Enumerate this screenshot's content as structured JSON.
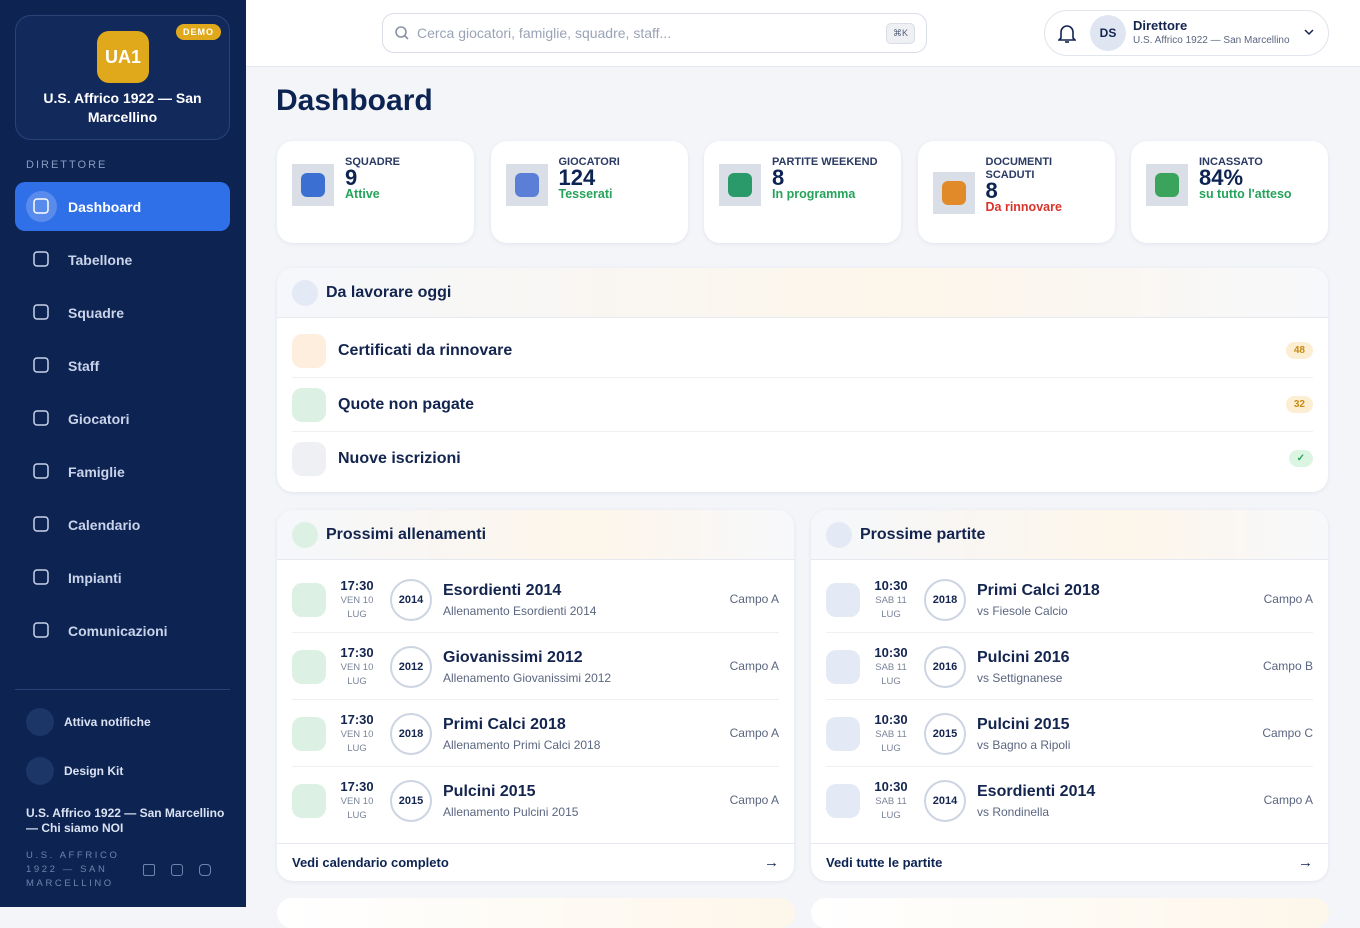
{
  "sidebar": {
    "logo": "UA1",
    "badge": "DEMO",
    "club": "U.S. Affrico 1922 — San Marcellino",
    "section": "DIRETTORE",
    "nav": [
      "Dashboard",
      "Tabellone",
      "Squadre",
      "Staff",
      "Giocatori",
      "Famiglie",
      "Calendario",
      "Impianti",
      "Comunicazioni"
    ],
    "actions": [
      "Attiva notifiche",
      "Design Kit"
    ],
    "footer_club": "U.S. Affrico 1922 — San Marcellino — Chi siamo NOI",
    "footer_small": "U.S. AFFRICO 1922 — SAN MARCELLINO"
  },
  "header": {
    "search": "Cerca giocatori, famiglie, squadre, staff...",
    "shortcut": "⌘K",
    "initials": "DS",
    "role": "Direttore",
    "club": "U.S. Affrico 1922 — San Marcellino"
  },
  "title": "Dashboard",
  "stats": [
    {
      "label": "SQUADRE",
      "value": "9",
      "sub": "Attive"
    },
    {
      "label": "GIOCATORI",
      "value": "124",
      "sub": "Tesserati"
    },
    {
      "label": "PARTITE WEEKEND",
      "value": "8",
      "sub": "In programma"
    },
    {
      "label": "DOCUMENTI SCADUTI",
      "value": "8",
      "sub": "Da rinnovare"
    },
    {
      "label": "INCASSATO",
      "value": "84%",
      "sub": "su tutto l'atteso"
    }
  ],
  "todo": {
    "title": "Da lavorare oggi",
    "items": [
      {
        "label": "Certificati da rinnovare",
        "badge": "48"
      },
      {
        "label": "Quote non pagate",
        "badge": "32"
      },
      {
        "label": "Nuove iscrizioni",
        "badge": "✓"
      }
    ]
  },
  "trainings": {
    "title": "Prossimi allenamenti",
    "items": [
      {
        "time": "17:30",
        "day": "VEN 10 LUG",
        "year": "2014",
        "name": "Esordienti 2014",
        "sub": "Allenamento Esordienti 2014",
        "field": "Campo A"
      },
      {
        "time": "17:30",
        "day": "VEN 10 LUG",
        "year": "2012",
        "name": "Giovanissimi 2012",
        "sub": "Allenamento Giovanissimi 2012",
        "field": "Campo A"
      },
      {
        "time": "17:30",
        "day": "VEN 10 LUG",
        "year": "2018",
        "name": "Primi Calci 2018",
        "sub": "Allenamento Primi Calci 2018",
        "field": "Campo A"
      },
      {
        "time": "17:30",
        "day": "VEN 10 LUG",
        "year": "2015",
        "name": "Pulcini 2015",
        "sub": "Allenamento Pulcini 2015",
        "field": "Campo A"
      }
    ],
    "link": "Vedi calendario completo"
  },
  "matches": {
    "title": "Prossime partite",
    "items": [
      {
        "time": "10:30",
        "day": "SAB 11 LUG",
        "year": "2018",
        "name": "Primi Calci 2018",
        "sub": "vs Fiesole Calcio",
        "field": "Campo A"
      },
      {
        "time": "10:30",
        "day": "SAB 11 LUG",
        "year": "2016",
        "name": "Pulcini 2016",
        "sub": "vs Settignanese",
        "field": "Campo B"
      },
      {
        "time": "10:30",
        "day": "SAB 11 LUG",
        "year": "2015",
        "name": "Pulcini 2015",
        "sub": "vs Bagno a Ripoli",
        "field": "Campo C"
      },
      {
        "time": "10:30",
        "day": "SAB 11 LUG",
        "year": "2014",
        "name": "Esordienti 2014",
        "sub": "vs Rondinella",
        "field": "Campo A"
      }
    ],
    "link": "Vedi tutte le partite"
  }
}
